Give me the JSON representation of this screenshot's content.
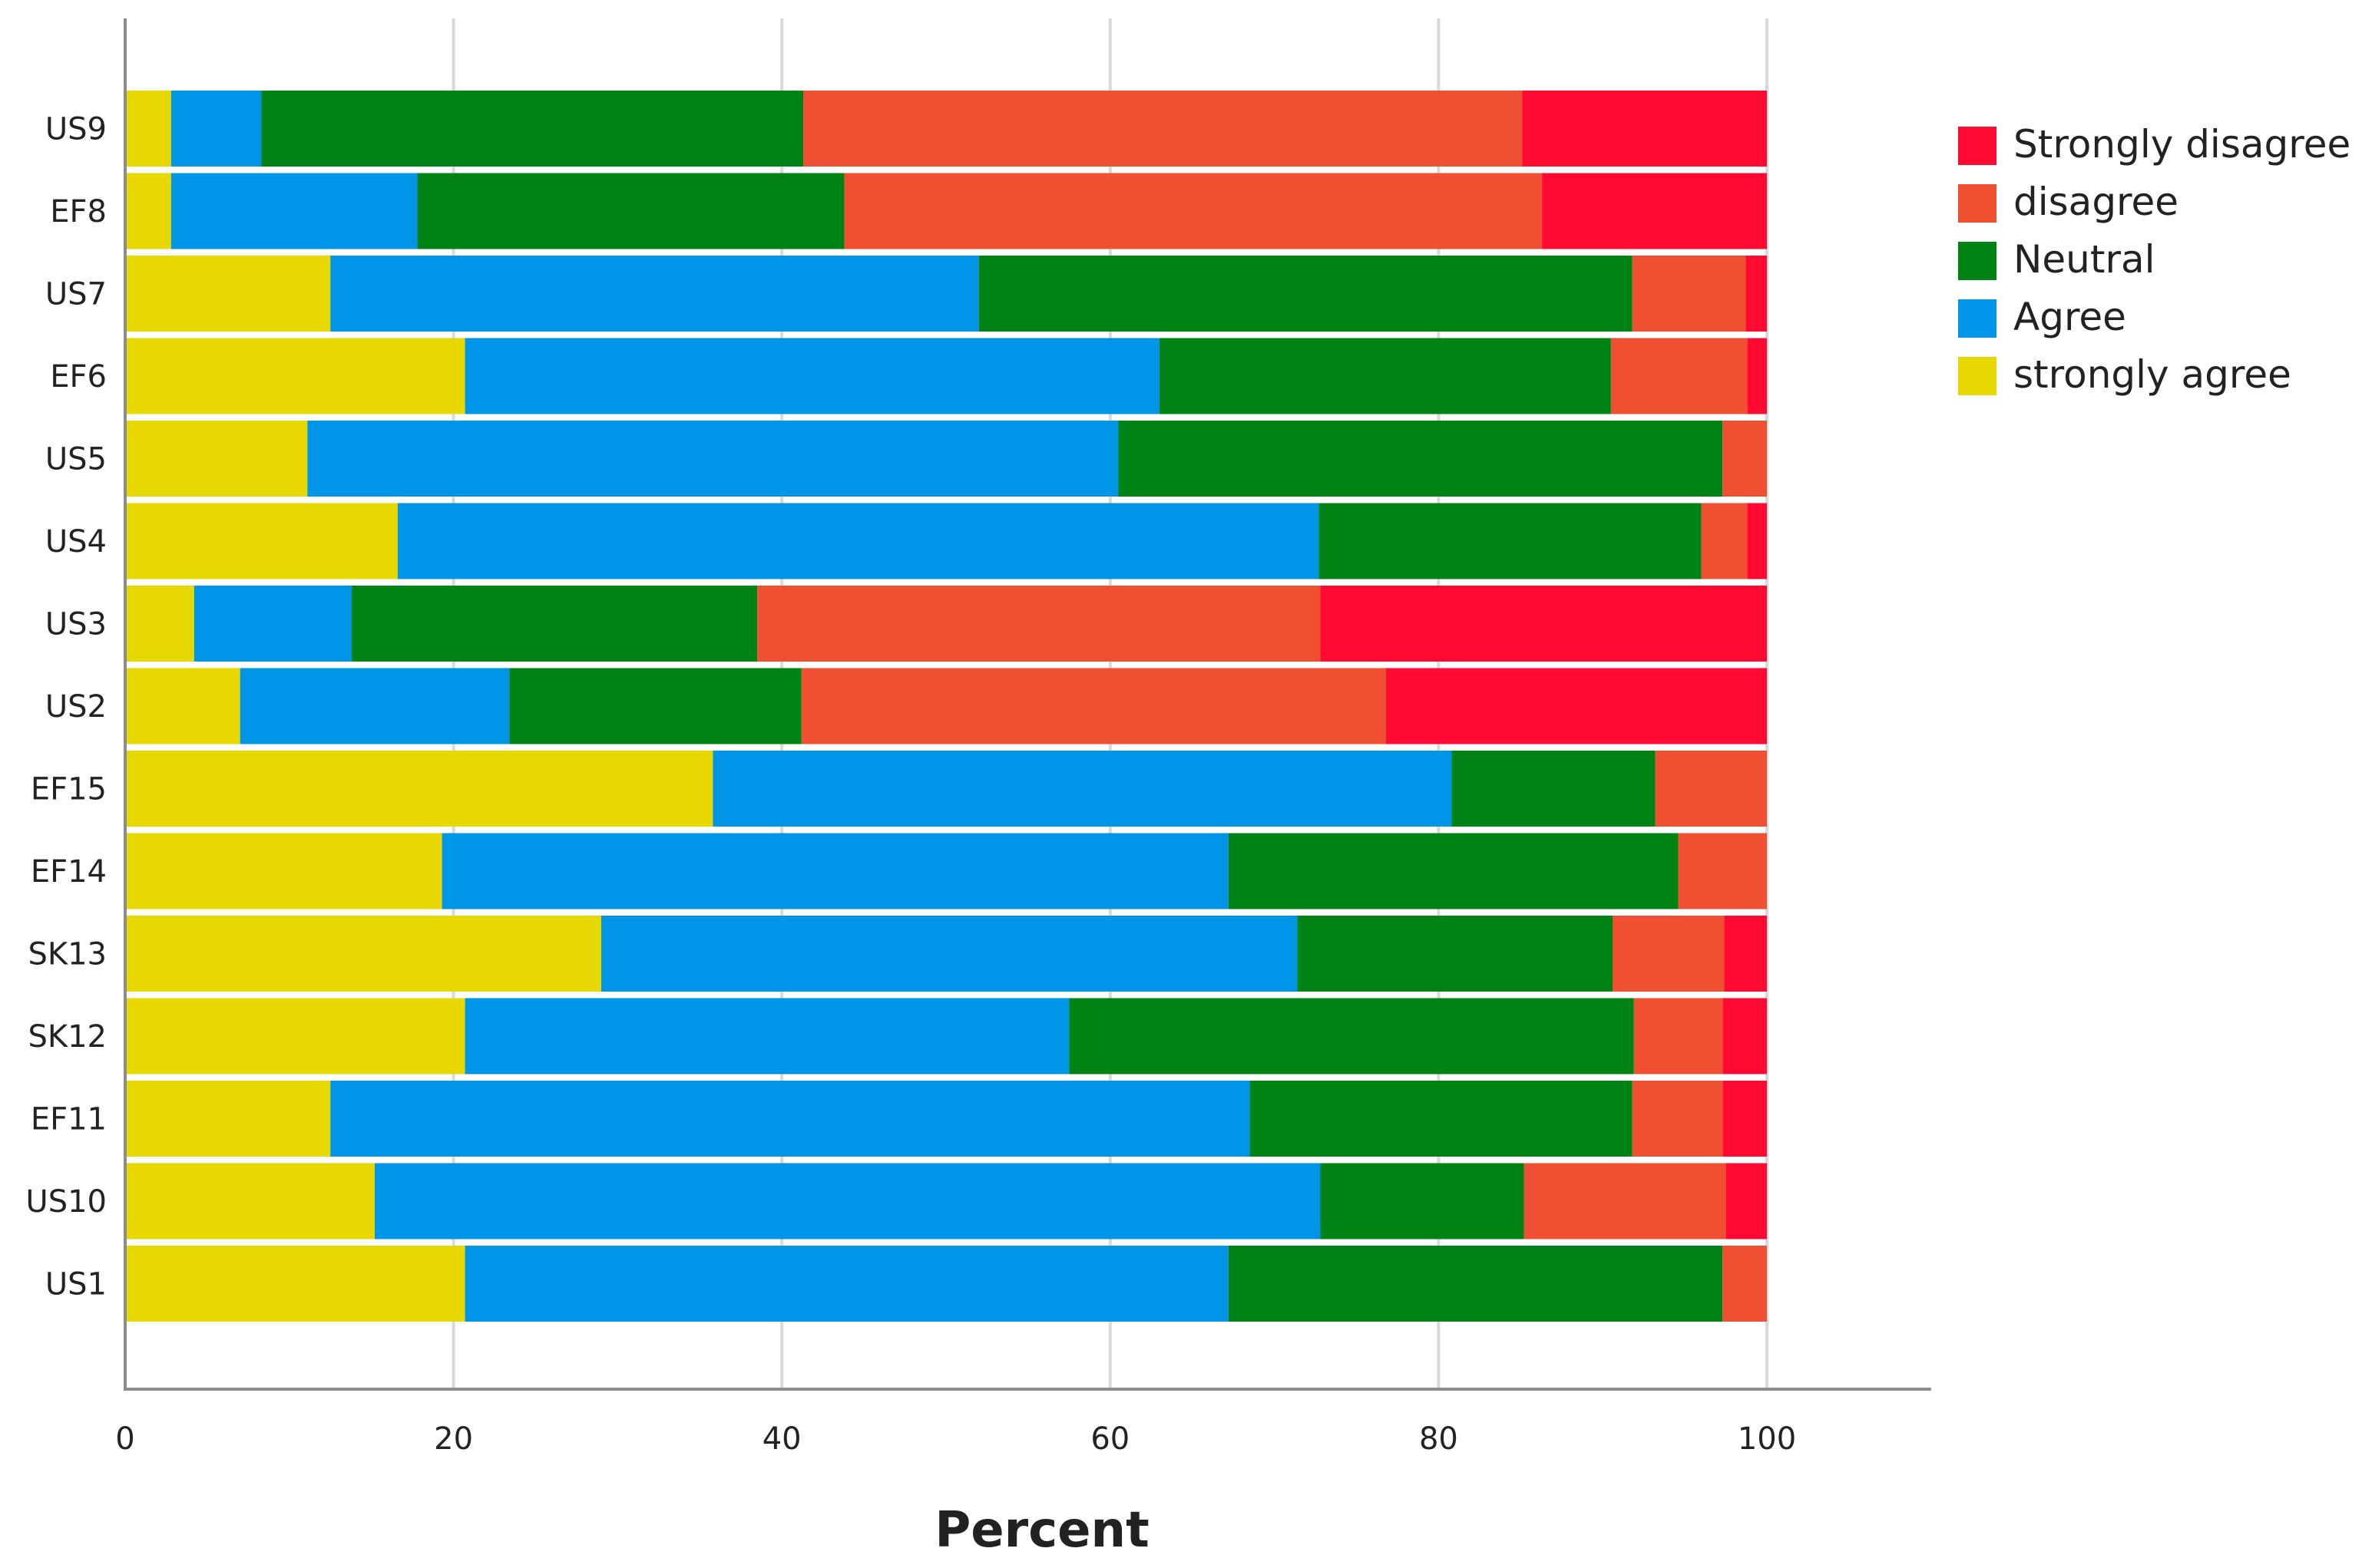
{
  "chart_data": {
    "type": "bar",
    "orientation": "horizontal",
    "stacked": true,
    "title": "",
    "xlabel": "Percent",
    "ylabel": "",
    "xlim": [
      0,
      110
    ],
    "x_ticks": [
      0,
      20,
      40,
      60,
      80,
      100
    ],
    "grid": true,
    "legend_position": "right",
    "categories": [
      "US9",
      "EF8",
      "US7",
      "EF6",
      "US5",
      "US4",
      "US3",
      "US2",
      "EF15",
      "EF14",
      "SK13",
      "SK12",
      "EF11",
      "US10",
      "US1"
    ],
    "series": [
      {
        "name": "strongly agree",
        "color": "#e6d800",
        "values": [
          2.8,
          2.8,
          12.5,
          20.7,
          11.1,
          16.6,
          4.2,
          7.0,
          35.8,
          19.3,
          29.0,
          20.7,
          12.5,
          15.2,
          20.7
        ]
      },
      {
        "name": "Agree",
        "color": "#0095e6",
        "values": [
          5.5,
          15.0,
          39.5,
          42.3,
          49.4,
          56.1,
          9.6,
          16.4,
          45.0,
          47.9,
          42.4,
          36.8,
          56.0,
          57.6,
          46.5
        ]
      },
      {
        "name": "Neutral",
        "color": "#008214",
        "values": [
          33.0,
          26.0,
          39.8,
          27.5,
          36.8,
          23.3,
          24.7,
          17.8,
          12.4,
          27.4,
          19.2,
          34.4,
          23.3,
          12.4,
          30.1
        ]
      },
      {
        "name": "disagree",
        "color": "#f05032",
        "values": [
          43.8,
          42.5,
          6.9,
          8.3,
          2.7,
          2.8,
          34.3,
          35.6,
          6.8,
          5.4,
          6.8,
          5.4,
          5.5,
          12.3,
          2.7
        ]
      },
      {
        "name": "Strongly disagree",
        "color": "#ff0a32",
        "values": [
          14.9,
          13.7,
          1.3,
          1.2,
          0.0,
          1.2,
          27.2,
          23.2,
          0.0,
          0.0,
          2.6,
          2.7,
          2.7,
          2.5,
          0.0
        ]
      }
    ],
    "legend_order": [
      "Strongly disagree",
      "disagree",
      "Neutral",
      "Agree",
      "strongly agree"
    ]
  },
  "colors": {
    "axis": "#8c8c8c",
    "grid": "#d9d9d9",
    "background": "#ffffff"
  }
}
